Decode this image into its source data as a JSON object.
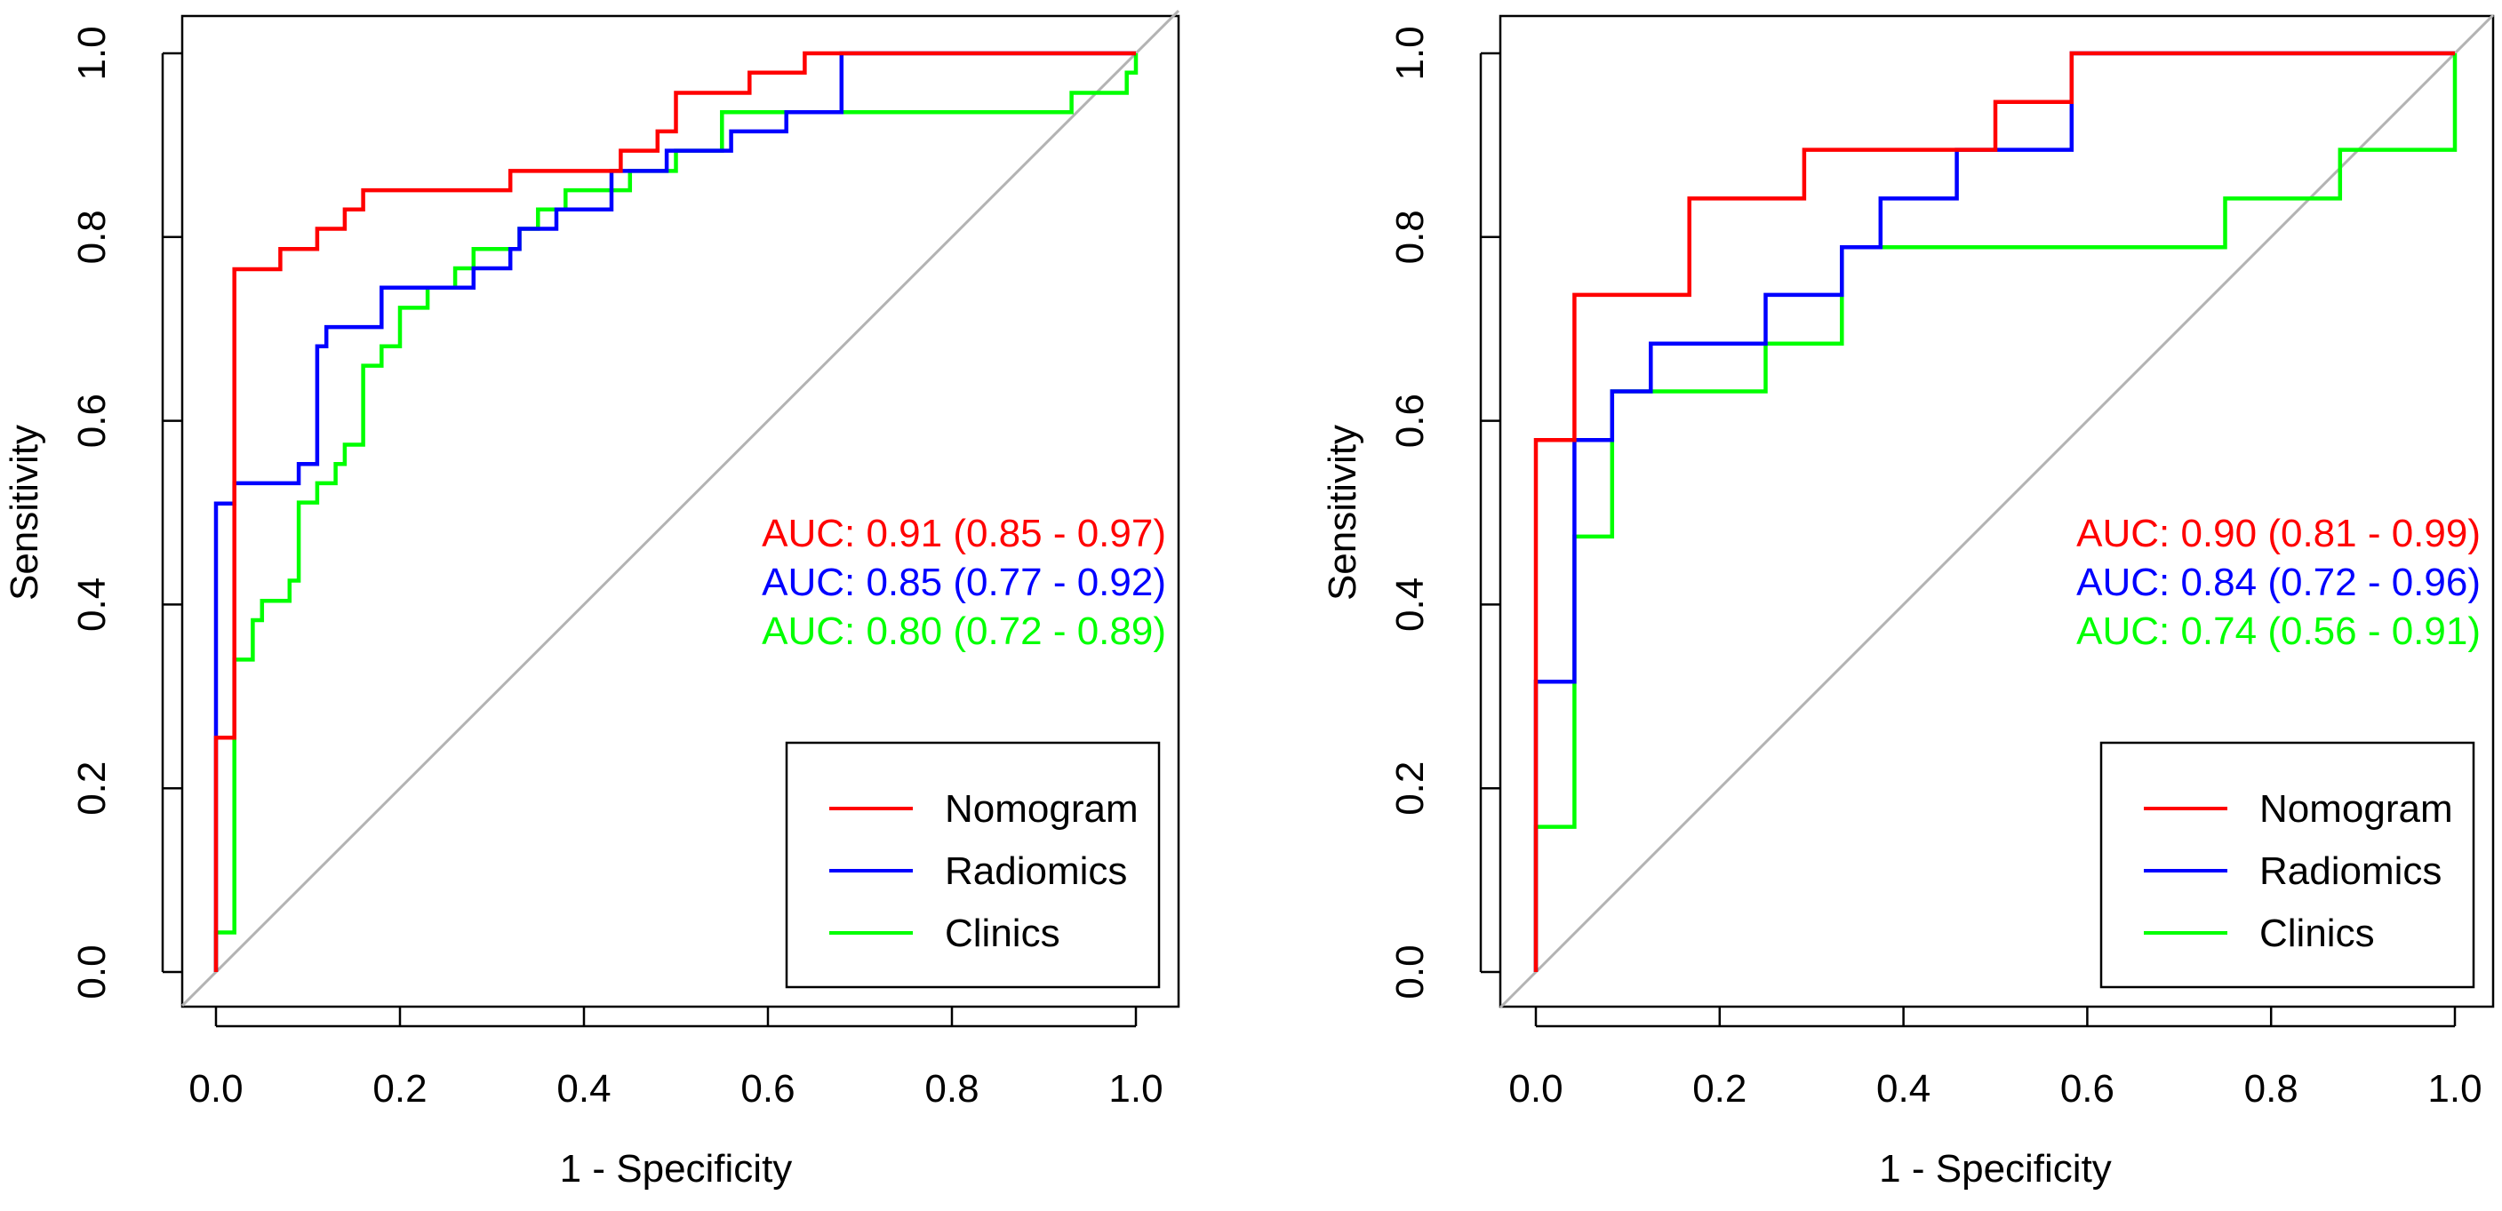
{
  "chart_data": [
    {
      "type": "line",
      "title": "",
      "xlabel": "1 - Specificity",
      "ylabel": "Sensitivity",
      "xlim": [
        0,
        1
      ],
      "ylim": [
        0,
        1
      ],
      "x_ticks": [
        "0.0",
        "0.2",
        "0.4",
        "0.6",
        "0.8",
        "1.0"
      ],
      "y_ticks": [
        "0.0",
        "0.2",
        "0.4",
        "0.6",
        "0.8",
        "1.0"
      ],
      "diagonal_reference": true,
      "legend_position": "bottom-right",
      "series": [
        {
          "name": "Nomogram",
          "color": "#ff0000",
          "auc_label": "AUC: 0.91 (0.85 - 0.97)",
          "points": [
            [
              0,
              0
            ],
            [
              0,
              0.255
            ],
            [
              0.02,
              0.255
            ],
            [
              0.02,
              0.34
            ],
            [
              0.02,
              0.765
            ],
            [
              0.07,
              0.765
            ],
            [
              0.07,
              0.787
            ],
            [
              0.11,
              0.787
            ],
            [
              0.11,
              0.809
            ],
            [
              0.14,
              0.809
            ],
            [
              0.14,
              0.83
            ],
            [
              0.16,
              0.83
            ],
            [
              0.16,
              0.851
            ],
            [
              0.32,
              0.851
            ],
            [
              0.32,
              0.872
            ],
            [
              0.44,
              0.872
            ],
            [
              0.44,
              0.894
            ],
            [
              0.48,
              0.894
            ],
            [
              0.48,
              0.915
            ],
            [
              0.5,
              0.915
            ],
            [
              0.5,
              0.957
            ],
            [
              0.58,
              0.957
            ],
            [
              0.58,
              0.979
            ],
            [
              0.64,
              0.979
            ],
            [
              0.64,
              1.0
            ],
            [
              1.0,
              1.0
            ]
          ]
        },
        {
          "name": "Radiomics",
          "color": "#0000ff",
          "auc_label": "AUC: 0.85 (0.77 - 0.92)",
          "points": [
            [
              0,
              0
            ],
            [
              0,
              0.51
            ],
            [
              0.02,
              0.51
            ],
            [
              0.02,
              0.532
            ],
            [
              0.09,
              0.532
            ],
            [
              0.09,
              0.553
            ],
            [
              0.11,
              0.553
            ],
            [
              0.11,
              0.681
            ],
            [
              0.12,
              0.681
            ],
            [
              0.12,
              0.702
            ],
            [
              0.18,
              0.702
            ],
            [
              0.18,
              0.745
            ],
            [
              0.28,
              0.745
            ],
            [
              0.28,
              0.766
            ],
            [
              0.32,
              0.766
            ],
            [
              0.32,
              0.787
            ],
            [
              0.33,
              0.787
            ],
            [
              0.33,
              0.809
            ],
            [
              0.37,
              0.809
            ],
            [
              0.37,
              0.83
            ],
            [
              0.43,
              0.83
            ],
            [
              0.43,
              0.872
            ],
            [
              0.49,
              0.872
            ],
            [
              0.49,
              0.894
            ],
            [
              0.56,
              0.894
            ],
            [
              0.56,
              0.915
            ],
            [
              0.62,
              0.915
            ],
            [
              0.62,
              0.936
            ],
            [
              0.68,
              0.936
            ],
            [
              0.68,
              1.0
            ],
            [
              1.0,
              1.0
            ]
          ]
        },
        {
          "name": "Clinics",
          "color": "#00ff00",
          "auc_label": "AUC: 0.80 (0.72 - 0.89)",
          "points": [
            [
              0,
              0
            ],
            [
              0,
              0.043
            ],
            [
              0.02,
              0.043
            ],
            [
              0.02,
              0.34
            ],
            [
              0.04,
              0.34
            ],
            [
              0.04,
              0.383
            ],
            [
              0.05,
              0.383
            ],
            [
              0.05,
              0.404
            ],
            [
              0.08,
              0.404
            ],
            [
              0.08,
              0.426
            ],
            [
              0.09,
              0.426
            ],
            [
              0.09,
              0.511
            ],
            [
              0.11,
              0.511
            ],
            [
              0.11,
              0.532
            ],
            [
              0.13,
              0.532
            ],
            [
              0.13,
              0.553
            ],
            [
              0.14,
              0.553
            ],
            [
              0.14,
              0.574
            ],
            [
              0.16,
              0.574
            ],
            [
              0.16,
              0.66
            ],
            [
              0.18,
              0.66
            ],
            [
              0.18,
              0.681
            ],
            [
              0.2,
              0.681
            ],
            [
              0.2,
              0.723
            ],
            [
              0.23,
              0.723
            ],
            [
              0.23,
              0.745
            ],
            [
              0.26,
              0.745
            ],
            [
              0.26,
              0.766
            ],
            [
              0.28,
              0.766
            ],
            [
              0.28,
              0.787
            ],
            [
              0.33,
              0.787
            ],
            [
              0.33,
              0.809
            ],
            [
              0.35,
              0.809
            ],
            [
              0.35,
              0.83
            ],
            [
              0.38,
              0.83
            ],
            [
              0.38,
              0.851
            ],
            [
              0.45,
              0.851
            ],
            [
              0.45,
              0.872
            ],
            [
              0.5,
              0.872
            ],
            [
              0.5,
              0.894
            ],
            [
              0.55,
              0.894
            ],
            [
              0.55,
              0.936
            ],
            [
              0.93,
              0.936
            ],
            [
              0.93,
              0.957
            ],
            [
              0.99,
              0.957
            ],
            [
              0.99,
              0.979
            ],
            [
              1.0,
              0.979
            ],
            [
              1.0,
              1.0
            ]
          ]
        }
      ]
    },
    {
      "type": "line",
      "title": "",
      "xlabel": "1 - Specificity",
      "ylabel": "Sensitivity",
      "xlim": [
        0,
        1
      ],
      "ylim": [
        0,
        1
      ],
      "x_ticks": [
        "0.0",
        "0.2",
        "0.4",
        "0.6",
        "0.8",
        "1.0"
      ],
      "y_ticks": [
        "0.0",
        "0.2",
        "0.4",
        "0.6",
        "0.8",
        "1.0"
      ],
      "diagonal_reference": true,
      "legend_position": "bottom-right",
      "series": [
        {
          "name": "Nomogram",
          "color": "#ff0000",
          "auc_label": "AUC: 0.90 (0.81 - 0.99)",
          "points": [
            [
              0,
              0
            ],
            [
              0,
              0.579
            ],
            [
              0.042,
              0.579
            ],
            [
              0.042,
              0.737
            ],
            [
              0.167,
              0.737
            ],
            [
              0.167,
              0.842
            ],
            [
              0.292,
              0.842
            ],
            [
              0.292,
              0.895
            ],
            [
              0.5,
              0.895
            ],
            [
              0.5,
              0.947
            ],
            [
              0.583,
              0.947
            ],
            [
              0.583,
              1.0
            ],
            [
              1.0,
              1.0
            ]
          ]
        },
        {
          "name": "Radiomics",
          "color": "#0000ff",
          "auc_label": "AUC: 0.84 (0.72 - 0.96)",
          "points": [
            [
              0,
              0
            ],
            [
              0,
              0.158
            ],
            [
              0,
              0.316
            ],
            [
              0.042,
              0.316
            ],
            [
              0.042,
              0.579
            ],
            [
              0.083,
              0.579
            ],
            [
              0.083,
              0.632
            ],
            [
              0.125,
              0.632
            ],
            [
              0.125,
              0.684
            ],
            [
              0.25,
              0.684
            ],
            [
              0.25,
              0.737
            ],
            [
              0.333,
              0.737
            ],
            [
              0.333,
              0.789
            ],
            [
              0.375,
              0.789
            ],
            [
              0.375,
              0.842
            ],
            [
              0.458,
              0.842
            ],
            [
              0.458,
              0.895
            ],
            [
              0.583,
              0.895
            ],
            [
              0.583,
              1.0
            ],
            [
              1.0,
              1.0
            ]
          ]
        },
        {
          "name": "Clinics",
          "color": "#00ff00",
          "auc_label": "AUC: 0.74 (0.56 - 0.91)",
          "points": [
            [
              0,
              0
            ],
            [
              0,
              0.158
            ],
            [
              0.042,
              0.158
            ],
            [
              0.042,
              0.474
            ],
            [
              0.083,
              0.474
            ],
            [
              0.083,
              0.632
            ],
            [
              0.25,
              0.632
            ],
            [
              0.25,
              0.684
            ],
            [
              0.333,
              0.684
            ],
            [
              0.333,
              0.789
            ],
            [
              0.75,
              0.789
            ],
            [
              0.75,
              0.842
            ],
            [
              0.833,
              0.842
            ],
            [
              0.833,
              0.842
            ],
            [
              0.875,
              0.842
            ],
            [
              0.875,
              0.895
            ],
            [
              1.0,
              0.895
            ],
            [
              1.0,
              1.0
            ]
          ]
        }
      ]
    }
  ]
}
